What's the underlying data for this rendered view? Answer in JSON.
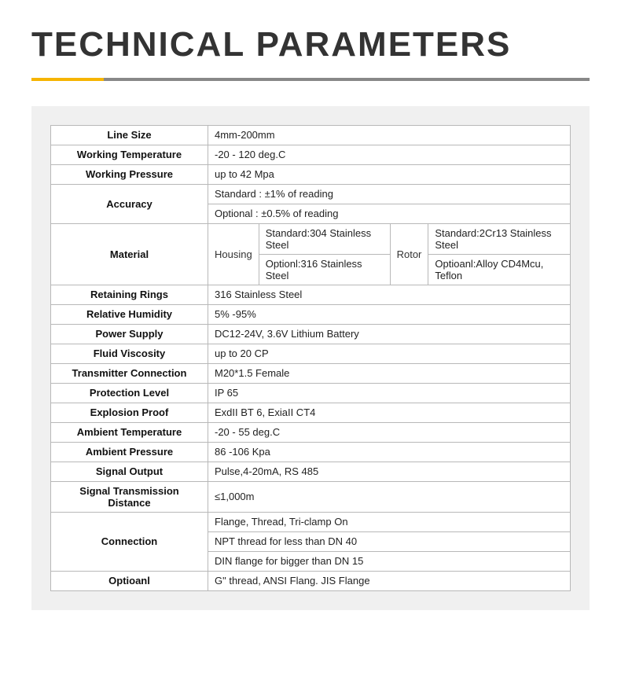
{
  "title": "TECHNICAL PARAMETERS",
  "colors": {
    "accent": "#f6b400",
    "divider": "#888888",
    "panel_bg": "#f0f0f0",
    "border": "#b8b8b8",
    "text": "#222222",
    "heading": "#333333"
  },
  "rows": {
    "line_size": {
      "label": "Line Size",
      "value": "4mm-200mm"
    },
    "working_temp": {
      "label": "Working Temperature",
      "value": "-20 - 120 deg.C"
    },
    "working_pressure": {
      "label": "Working Pressure",
      "value": "up to 42 Mpa"
    },
    "accuracy": {
      "label": "Accuracy",
      "v1": "Standard : ±1% of reading",
      "v2": "Optional : ±0.5% of reading"
    },
    "material": {
      "label": "Material",
      "housing_label": "Housing",
      "housing_v1": "Standard:304 Stainless Steel",
      "housing_v2": "Optionl:316 Stainless Steel",
      "rotor_label": "Rotor",
      "rotor_v1": "Standard:2Cr13  Stainless Steel",
      "rotor_v2": "Optioanl:Alloy CD4Mcu, Teflon"
    },
    "retaining_rings": {
      "label": "Retaining Rings",
      "value": "316 Stainless Steel"
    },
    "relative_humidity": {
      "label": "Relative Humidity",
      "value": "5% -95%"
    },
    "power_supply": {
      "label": "Power Supply",
      "value": "DC12-24V, 3.6V Lithium Battery"
    },
    "fluid_viscosity": {
      "label": "Fluid Viscosity",
      "value": "up to 20 CP"
    },
    "transmitter_conn": {
      "label": "Transmitter Connection",
      "value": "M20*1.5 Female"
    },
    "protection_level": {
      "label": "Protection Level",
      "value": "IP 65"
    },
    "explosion_proof": {
      "label": "Explosion Proof",
      "value": "ExdII BT 6, ExiaII CT4"
    },
    "ambient_temp": {
      "label": "Ambient Temperature",
      "value": "-20 - 55 deg.C"
    },
    "ambient_pressure": {
      "label": "Ambient Pressure",
      "value": "86 -106 Kpa"
    },
    "signal_output": {
      "label": "Signal Output",
      "value": "Pulse,4-20mA, RS 485"
    },
    "signal_distance": {
      "label": "Signal Transmission Distance",
      "value": "≤1,000m"
    },
    "connection": {
      "label": "Connection",
      "v1": "Flange, Thread, Tri-clamp On",
      "v2": "NPT thread for less than DN 40",
      "v3": "DIN flange for bigger than DN 15"
    },
    "optional": {
      "label": "Optioanl",
      "value": "G\" thread, ANSI Flang. JIS Flange"
    }
  }
}
